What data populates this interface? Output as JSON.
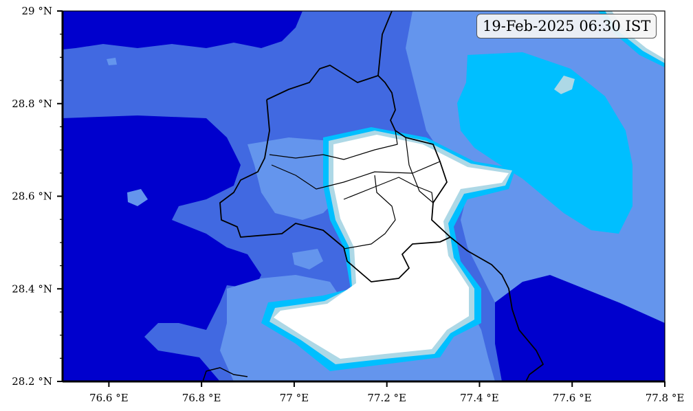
{
  "timestamp": "19-Feb-2025 06:30 IST",
  "axes": {
    "x_ticks": [
      {
        "value": 76.6,
        "label": "76.6 °E"
      },
      {
        "value": 76.8,
        "label": "76.8 °E"
      },
      {
        "value": 77.0,
        "label": "77 °E"
      },
      {
        "value": 77.2,
        "label": "77.2 °E"
      },
      {
        "value": 77.4,
        "label": "77.4 °E"
      },
      {
        "value": 77.6,
        "label": "77.6 °E"
      },
      {
        "value": 77.8,
        "label": "77.8 °E"
      }
    ],
    "y_ticks": [
      {
        "value": 28.2,
        "label": "28.2 °N"
      },
      {
        "value": 28.4,
        "label": "28.4 °N"
      },
      {
        "value": 28.6,
        "label": "28.6 °N"
      },
      {
        "value": 28.8,
        "label": "28.8 °N"
      },
      {
        "value": 29.0,
        "label": "29 °N"
      }
    ],
    "x_range": [
      76.5,
      77.8
    ],
    "y_range": [
      28.2,
      29.0
    ]
  },
  "colors": {
    "level_darkest": "#0000cd",
    "level_dark": "#4169e1",
    "level_mid": "#6495ed",
    "level_bright": "#00bfff",
    "level_light": "#add8e6",
    "level_clear": "#ffffff",
    "boundary": "#000000"
  }
}
